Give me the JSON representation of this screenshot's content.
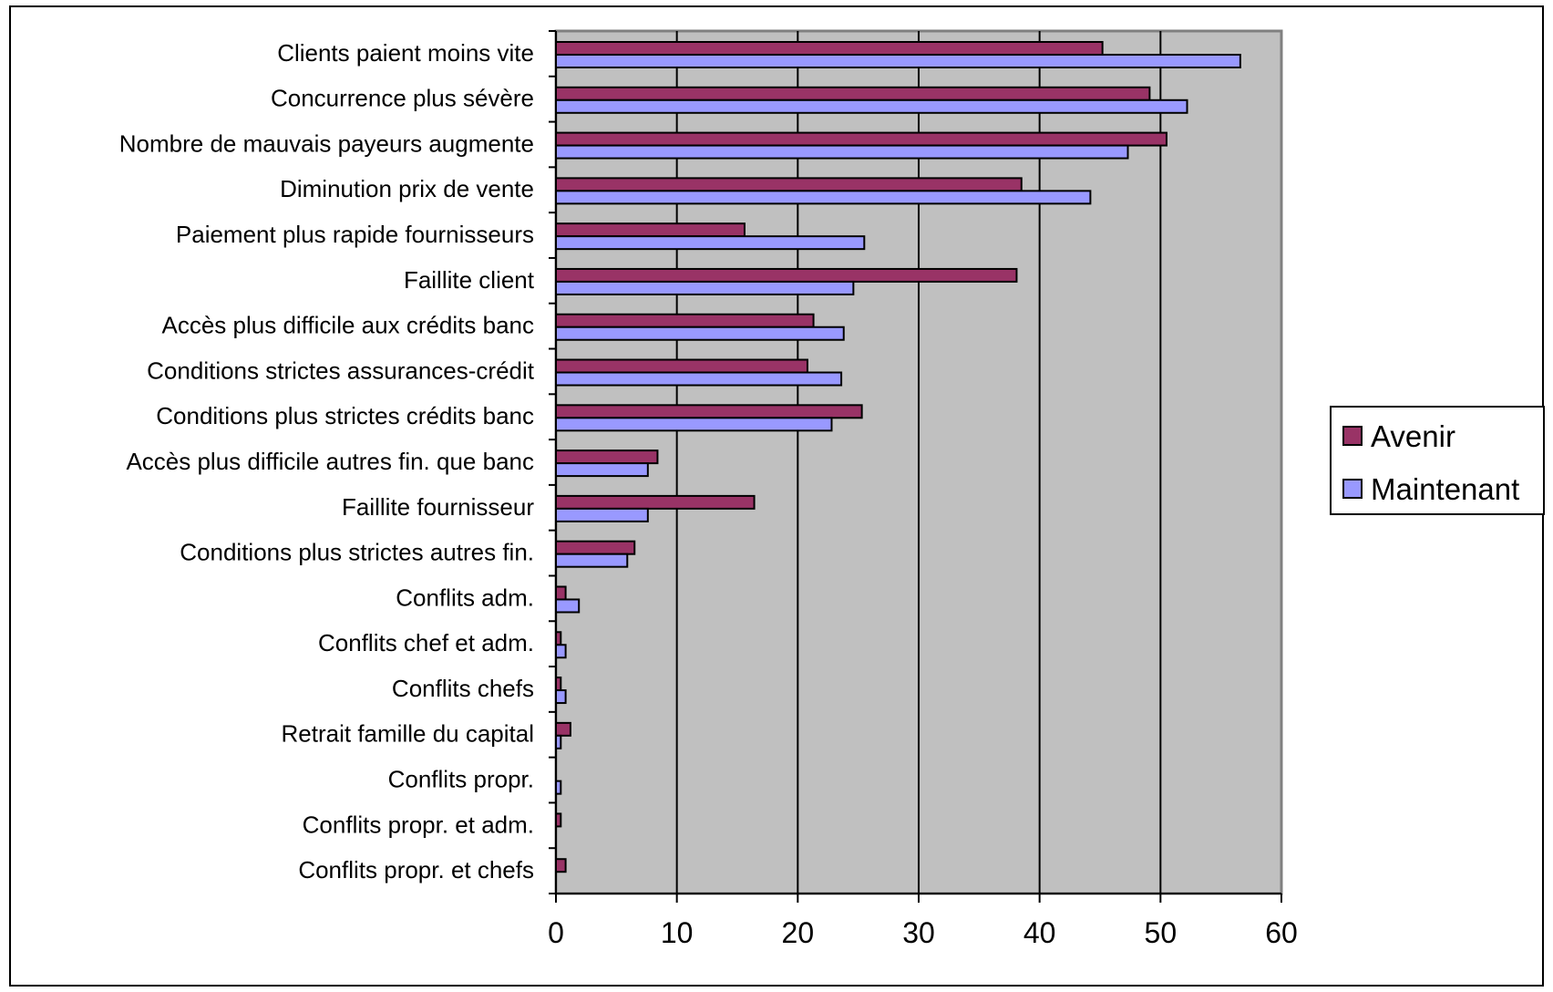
{
  "chart_data": {
    "type": "bar",
    "orientation": "horizontal",
    "categories": [
      "Clients paient moins vite",
      "Concurrence plus sévère",
      "Nombre de mauvais payeurs augmente",
      "Diminution prix de vente",
      "Paiement plus rapide fournisseurs",
      "Faillite client",
      "Accès plus difficile aux crédits banc",
      "Conditions strictes assurances-crédit",
      "Conditions plus strictes crédits banc",
      "Accès plus difficile autres fin. que banc",
      "Faillite fournisseur",
      "Conditions plus strictes autres fin.",
      "Conflits adm.",
      "Conflits chef et adm.",
      "Conflits chefs",
      "Retrait famille du capital",
      "Conflits propr.",
      "Conflits propr. et adm.",
      "Conflits propr. et chefs"
    ],
    "series": [
      {
        "name": "Avenir",
        "color": "#993366",
        "values": [
          45.2,
          49.1,
          50.5,
          38.5,
          15.6,
          38.1,
          21.3,
          20.8,
          25.3,
          8.4,
          16.4,
          6.5,
          0.8,
          0.4,
          0.4,
          1.2,
          0.0,
          0.4,
          0.8
        ]
      },
      {
        "name": "Maintenant",
        "color": "#9999ff",
        "values": [
          56.6,
          52.2,
          47.3,
          44.2,
          25.5,
          24.6,
          23.8,
          23.6,
          22.8,
          7.6,
          7.6,
          5.9,
          1.9,
          0.8,
          0.8,
          0.4,
          0.4,
          0.0,
          0.0
        ]
      }
    ],
    "x_ticks": [
      "0",
      "10",
      "20",
      "30",
      "40",
      "50",
      "60"
    ],
    "xlim": [
      0,
      60
    ],
    "title": "",
    "xlabel": "",
    "ylabel": "",
    "grid": true,
    "plot_background": "#c0c0c0",
    "legend_position": "right"
  }
}
